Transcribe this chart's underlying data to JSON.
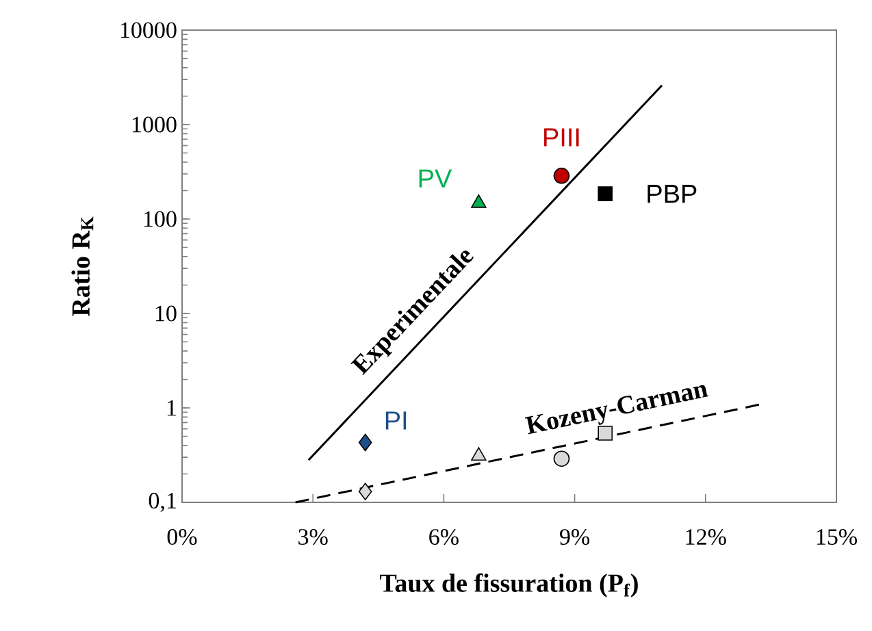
{
  "chart_data": {
    "type": "scatter",
    "xlabel": "Taux de fissuration (P$_{f}$)",
    "ylabel": "Ratio R$_{K}$",
    "xlim": [
      0,
      15
    ],
    "ylim": [
      0.1,
      10000
    ],
    "log": "y",
    "xticks": [
      {
        "value": 0,
        "label": "0%"
      },
      {
        "value": 3,
        "label": "3%"
      },
      {
        "value": 6,
        "label": "6%"
      },
      {
        "value": 9,
        "label": "9%"
      },
      {
        "value": 12,
        "label": "12%"
      },
      {
        "value": 15,
        "label": "15%"
      }
    ],
    "yticks": [
      {
        "value": 0.1,
        "label": "0,1"
      },
      1,
      10,
      100,
      1000,
      10000
    ],
    "grid": false,
    "series": [
      {
        "name": "PI",
        "color": "#1f4e8c",
        "marker": "diamond",
        "x": [
          4.2
        ],
        "values": [
          0.43
        ]
      },
      {
        "name": "PV",
        "color": "#00b050",
        "marker": "triangle",
        "x": [
          6.8
        ],
        "values": [
          147
        ]
      },
      {
        "name": "PIII",
        "color": "#c00000",
        "marker": "circle",
        "x": [
          8.7
        ],
        "values": [
          287
        ]
      },
      {
        "name": "PBP",
        "color": "#000000",
        "marker": "square",
        "x": [
          9.7
        ],
        "values": [
          185
        ]
      },
      {
        "color": "#d9d9d9",
        "marker": "diamond",
        "x": [
          4.2
        ],
        "values": [
          0.13
        ]
      },
      {
        "color": "#d9d9d9",
        "marker": "triangle",
        "x": [
          6.8
        ],
        "values": [
          0.31
        ]
      },
      {
        "color": "#d9d9d9",
        "marker": "circle",
        "x": [
          8.7
        ],
        "values": [
          0.29
        ]
      },
      {
        "color": "#d9d9d9",
        "marker": "square",
        "x": [
          9.7
        ],
        "values": [
          0.54
        ]
      },
      {
        "name": "Experimentale",
        "type": "line",
        "color": "#000000",
        "marker": "none",
        "line_style": "solid",
        "x": [
          2.9,
          11.0
        ],
        "values": [
          0.28,
          2600
        ]
      },
      {
        "name": "Kozeny-Carman",
        "type": "line",
        "color": "#000000",
        "marker": "none",
        "line_style": "dashed",
        "x": [
          2.6,
          13.3
        ],
        "values": [
          0.1,
          1.1
        ]
      }
    ]
  }
}
